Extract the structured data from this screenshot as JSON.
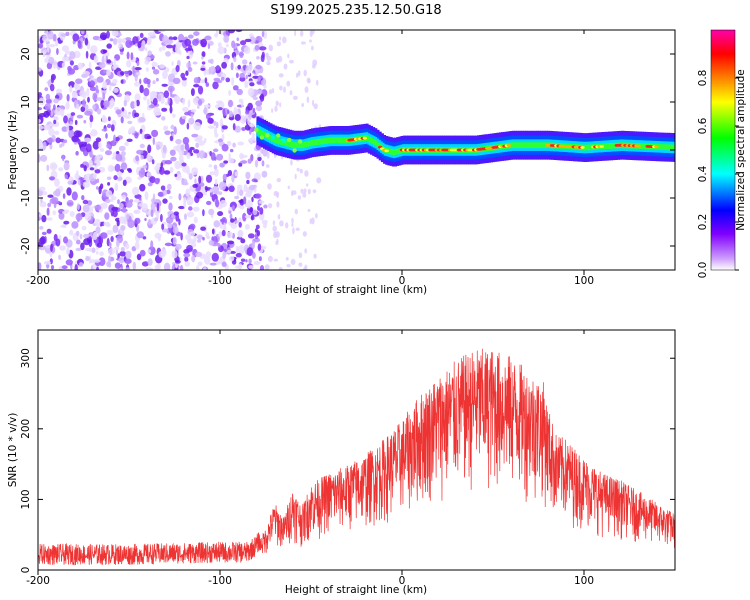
{
  "title": "S199.2025.235.12.50.G18",
  "chart_data": [
    {
      "type": "heatmap",
      "panel": "spectrogram",
      "xlabel": "Height of straight line (km)",
      "ylabel": "Frequency (Hz)",
      "xlim": [
        -200,
        150
      ],
      "ylim": [
        -25,
        25
      ],
      "xticks": [
        -200,
        -100,
        0,
        100
      ],
      "yticks": [
        -20,
        -10,
        0,
        10,
        20
      ],
      "noise_region_x": [
        -200,
        -75
      ],
      "ridge": {
        "name": "dominant frequency ridge",
        "x": [
          -80,
          -75,
          -70,
          -65,
          -60,
          -55,
          -50,
          -40,
          -30,
          -20,
          -15,
          -10,
          -5,
          0,
          10,
          20,
          40,
          60,
          80,
          100,
          120,
          150
        ],
        "y": [
          4,
          3,
          2,
          1.5,
          1,
          1,
          1.5,
          2,
          2,
          2.5,
          1.5,
          0,
          -0.5,
          0,
          0,
          0,
          0,
          1,
          1,
          0.5,
          1,
          0.5
        ]
      },
      "colorbar": {
        "label": "Normalized spectral amplitude",
        "ticks": [
          0.0,
          0.2,
          0.4,
          0.6,
          0.8
        ],
        "tick_labels": [
          "0.0",
          "0.2",
          "0.4",
          "0.6",
          "0.8"
        ],
        "colors": [
          "#ffffff",
          "#8000ff",
          "#0000ff",
          "#00ffff",
          "#00ff00",
          "#ffff00",
          "#ff8000",
          "#ff0000",
          "#ff00ff"
        ]
      }
    },
    {
      "type": "line",
      "panel": "snr",
      "xlabel": "Height of straight line (km)",
      "ylabel": "SNR (10 * v/v)",
      "xlim": [
        -200,
        150
      ],
      "ylim": [
        0,
        340
      ],
      "xticks": [
        -200,
        -100,
        0,
        100
      ],
      "yticks": [
        0,
        100,
        200,
        300
      ],
      "color": "#ee3333",
      "series": [
        {
          "name": "SNR envelope",
          "x": [
            -200,
            -150,
            -100,
            -85,
            -80,
            -75,
            -70,
            -65,
            -60,
            -55,
            -50,
            -40,
            -30,
            -20,
            -10,
            0,
            10,
            20,
            30,
            40,
            50,
            60,
            70,
            78,
            80,
            85,
            90,
            100,
            110,
            120,
            130,
            140,
            150
          ],
          "y": [
            22,
            22,
            25,
            25,
            35,
            55,
            90,
            70,
            110,
            85,
            115,
            130,
            140,
            155,
            175,
            200,
            235,
            260,
            280,
            295,
            295,
            285,
            265,
            250,
            220,
            180,
            175,
            150,
            130,
            120,
            105,
            90,
            75
          ]
        }
      ]
    }
  ]
}
